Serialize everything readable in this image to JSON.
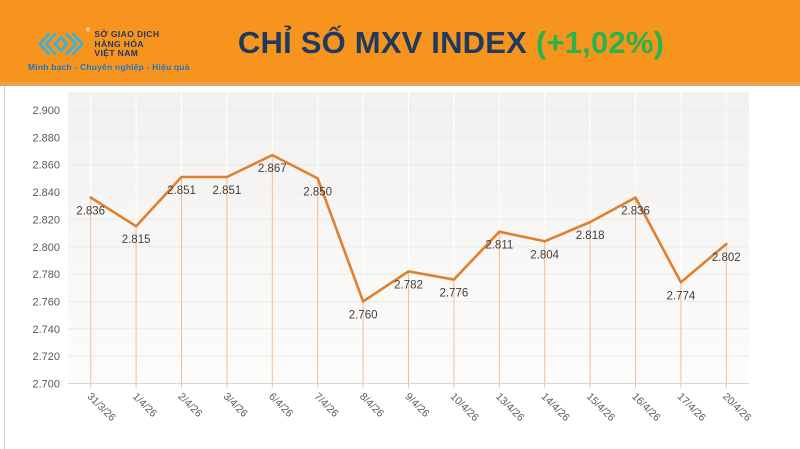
{
  "header": {
    "logo": {
      "org_lines": [
        "SỞ GIAO DỊCH",
        "HÀNG HÓA",
        "VIỆT NAM"
      ],
      "tagline": "Minh bạch - Chuyên nghiệp - Hiệu quả",
      "trademark": "®",
      "icon_color": "#35B2DB"
    },
    "title": "CHỈ SỐ MXV INDEX",
    "change": "(+1,02%)",
    "band_color": "#F7941E",
    "title_color": "#1F3A5F",
    "change_color": "#2BB34B"
  },
  "chart_data": {
    "type": "line",
    "title": "CHỈ SỐ MXV INDEX",
    "subtitle_change": "(+1,02%)",
    "categories": [
      "31/3/26",
      "1/4/26",
      "2/4/26",
      "3/4/26",
      "6/4/26",
      "7/4/26",
      "8/4/26",
      "9/4/26",
      "10/4/26",
      "13/4/26",
      "14/4/26",
      "15/4/26",
      "16/4/26",
      "17/4/26",
      "20/4/26"
    ],
    "values": [
      2836,
      2815,
      2851,
      2851,
      2867,
      2850,
      2760,
      2782,
      2776,
      2811,
      2804,
      2818,
      2836,
      2774,
      2802
    ],
    "point_labels": [
      "2.836",
      "2.815",
      "2.851",
      "2.851",
      "2.867",
      "2.850",
      "2.760",
      "2.782",
      "2.776",
      "2.811",
      "2.804",
      "2.818",
      "2.836",
      "2.774",
      "2.802"
    ],
    "y_ticks": [
      "2.900",
      "2.880",
      "2.860",
      "2.840",
      "2.820",
      "2.800",
      "2.780",
      "2.760",
      "2.740",
      "2.720",
      "2.700"
    ],
    "ylim": [
      2700,
      2900
    ],
    "y_step": 20,
    "xlabel": "",
    "ylabel": "",
    "grid": "horizontal-faint",
    "legend": "none",
    "line_color": "#E0802E",
    "dropline_color": "#F2BE96",
    "plot_bg_top": "#F2F1EF",
    "plot_bg_bottom": "#FCFCFB"
  }
}
